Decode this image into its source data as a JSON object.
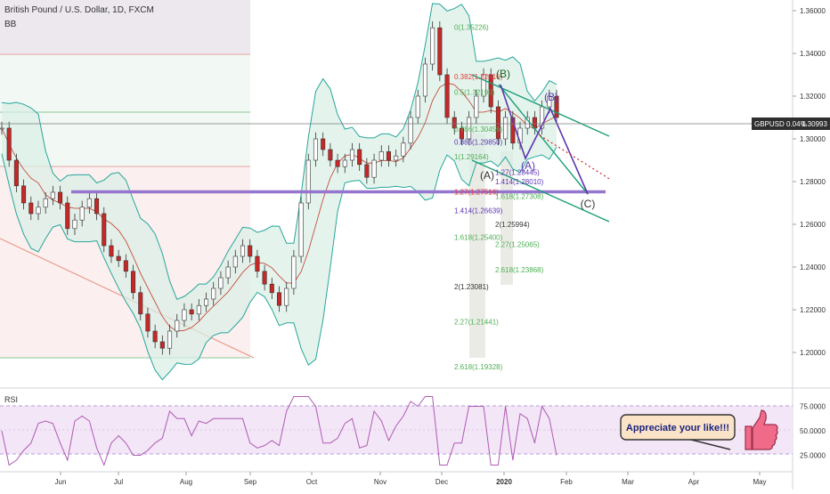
{
  "header": {
    "symbol_title": "British Pound / U.S. Dollar, 1D, FXCM",
    "indicator": "BB"
  },
  "price_tag": {
    "label": "GBPUSD 0.04%",
    "value": "1.30993"
  },
  "rsi": {
    "label": "RSI"
  },
  "callout": {
    "text": "Appreciate your like!!!",
    "icon": "thumbs-up-icon",
    "fill_color": "#fbe3c8",
    "icon_color": "#f06b8a"
  },
  "chart_data": {
    "type": "line",
    "title": "British Pound / U.S. Dollar, 1D, FXCM",
    "y_axis": {
      "ticks": [
        "1.36000",
        "1.34000",
        "1.32000",
        "1.30000",
        "1.28000",
        "1.26000",
        "1.24000",
        "1.22000",
        "1.20000"
      ],
      "ylim": [
        1.185,
        1.365
      ]
    },
    "x_axis": {
      "ticks": [
        "Jun",
        "Jul",
        "Aug",
        "Sep",
        "Oct",
        "Nov",
        "Dec",
        "2020",
        "Feb",
        "Mar",
        "Apr",
        "May"
      ]
    },
    "rsi_axis": {
      "ticks": [
        "75.0000",
        "50.0000",
        "25.0000"
      ],
      "ylim": [
        10,
        90
      ]
    },
    "close": [
      1.305,
      1.29,
      1.278,
      1.27,
      1.265,
      1.268,
      1.272,
      1.275,
      1.27,
      1.258,
      1.262,
      1.268,
      1.272,
      1.265,
      1.25,
      1.245,
      1.243,
      1.238,
      1.228,
      1.218,
      1.21,
      1.205,
      1.202,
      1.21,
      1.215,
      1.22,
      1.218,
      1.222,
      1.225,
      1.23,
      1.235,
      1.24,
      1.245,
      1.25,
      1.245,
      1.238,
      1.232,
      1.228,
      1.222,
      1.23,
      1.245,
      1.27,
      1.29,
      1.3,
      1.295,
      1.29,
      1.287,
      1.29,
      1.295,
      1.288,
      1.282,
      1.29,
      1.294,
      1.29,
      1.292,
      1.298,
      1.31,
      1.32,
      1.335,
      1.352,
      1.33,
      1.31,
      1.305,
      1.3,
      1.31,
      1.32,
      1.33,
      1.315,
      1.3,
      1.31,
      1.298,
      1.305,
      1.31,
      1.305,
      1.315,
      1.32,
      1.31
    ],
    "series": [
      {
        "name": "Price",
        "color": "#2f2f2f"
      },
      {
        "name": "BB",
        "color": "#26a69a"
      },
      {
        "name": "RSI",
        "color": "#b05ab5"
      }
    ],
    "fib_levels_dec": [
      {
        "label": "0(1.35226)",
        "y": 1.35226,
        "color": "#4caf50"
      },
      {
        "label": "0.382(1.32916)",
        "y": 1.32916,
        "color": "#e53935"
      },
      {
        "label": "0.5(1.32190)",
        "y": 1.3219,
        "color": "#4caf50"
      },
      {
        "label": "0.786(1.30456)",
        "y": 1.30456,
        "color": "#4caf50"
      },
      {
        "label": "0.886(1.29850)",
        "y": 1.2985,
        "color": "#5e35b1"
      },
      {
        "label": "1(1.29164)",
        "y": 1.29164,
        "color": "#4caf50"
      },
      {
        "label": "1.27(1.27516)",
        "y": 1.27516,
        "color": "#e53935"
      },
      {
        "label": "1.414(1.26639)",
        "y": 1.26639,
        "color": "#5e35b1"
      },
      {
        "label": "1.618(1.25400)",
        "y": 1.254,
        "color": "#4caf50"
      },
      {
        "label": "2(1.23081)",
        "y": 1.23081,
        "color": "#333333"
      },
      {
        "label": "2.27(1.21441)",
        "y": 1.21441,
        "color": "#4caf50"
      },
      {
        "label": "2.618(1.19328)",
        "y": 1.19328,
        "color": "#4caf50"
      }
    ],
    "fib_levels_jan": [
      {
        "label": "1.27(1.28445)",
        "y": 1.28445,
        "color": "#5e35b1"
      },
      {
        "label": "1.414(1.28010)",
        "y": 1.2801,
        "color": "#5e35b1"
      },
      {
        "label": "1.618(1.27308)",
        "y": 1.27308,
        "color": "#4caf50"
      },
      {
        "label": "2(1.25994)",
        "y": 1.25994,
        "color": "#333333"
      },
      {
        "label": "2.27(1.25065)",
        "y": 1.25065,
        "color": "#4caf50"
      },
      {
        "label": "2.618(1.23868)",
        "y": 1.23868,
        "color": "#4caf50"
      }
    ],
    "wave_labels": [
      "(A)",
      "(B)",
      "(A)",
      "(B)",
      "(C)"
    ],
    "support_line": 1.2752,
    "legend": "top-left",
    "grid": false
  }
}
